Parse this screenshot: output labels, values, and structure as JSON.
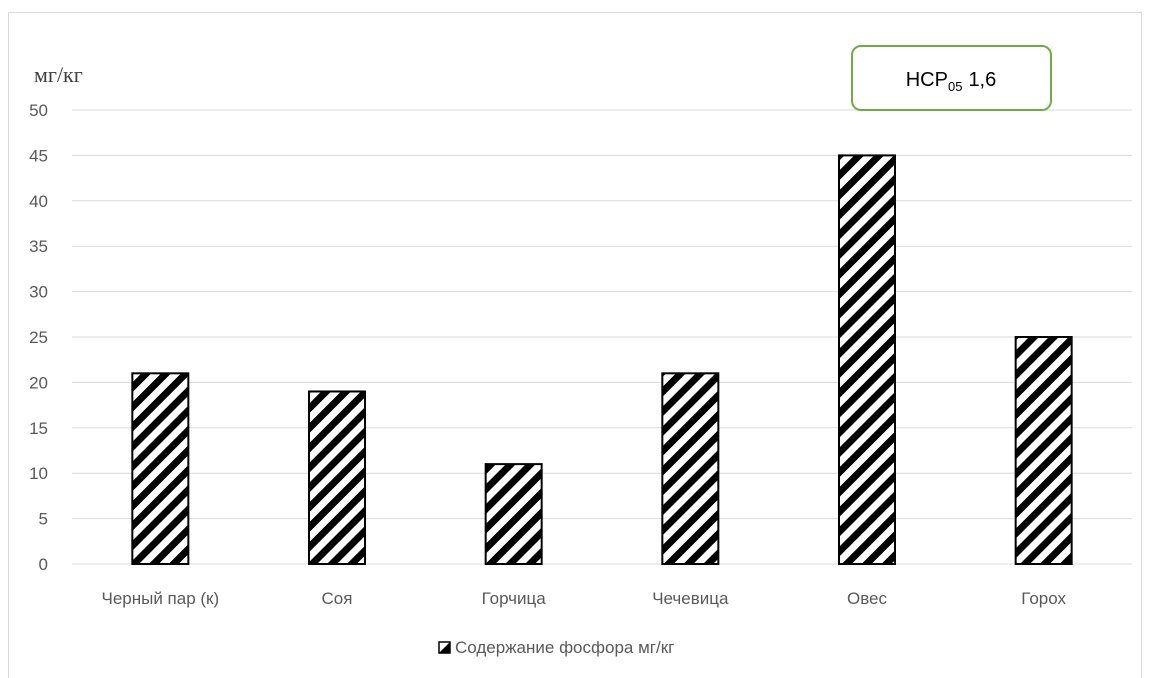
{
  "chart_data": {
    "type": "bar",
    "ylabel": "мг/кг",
    "categories": [
      "Черный пар (к)",
      "Соя",
      "Горчица",
      "Чечевица",
      "Овес",
      "Горох"
    ],
    "series": [
      {
        "name": "Содержание фосфора мг/кг",
        "values": [
          21,
          19,
          11,
          21,
          45,
          25
        ]
      }
    ],
    "ylim": [
      0,
      50
    ],
    "yticks": [
      0,
      5,
      10,
      15,
      20,
      25,
      30,
      35,
      40,
      45,
      50
    ],
    "grid": true,
    "legend": "bottom",
    "fill_pattern": "diagonal-hatch",
    "colors": {
      "bar_fill": "#000000",
      "bar_bg": "#ffffff",
      "grid": "#d9d9d9",
      "note_border": "#70ad47"
    },
    "annotation": {
      "label": "НСР",
      "subscript": "05",
      "value": "1,6"
    }
  }
}
